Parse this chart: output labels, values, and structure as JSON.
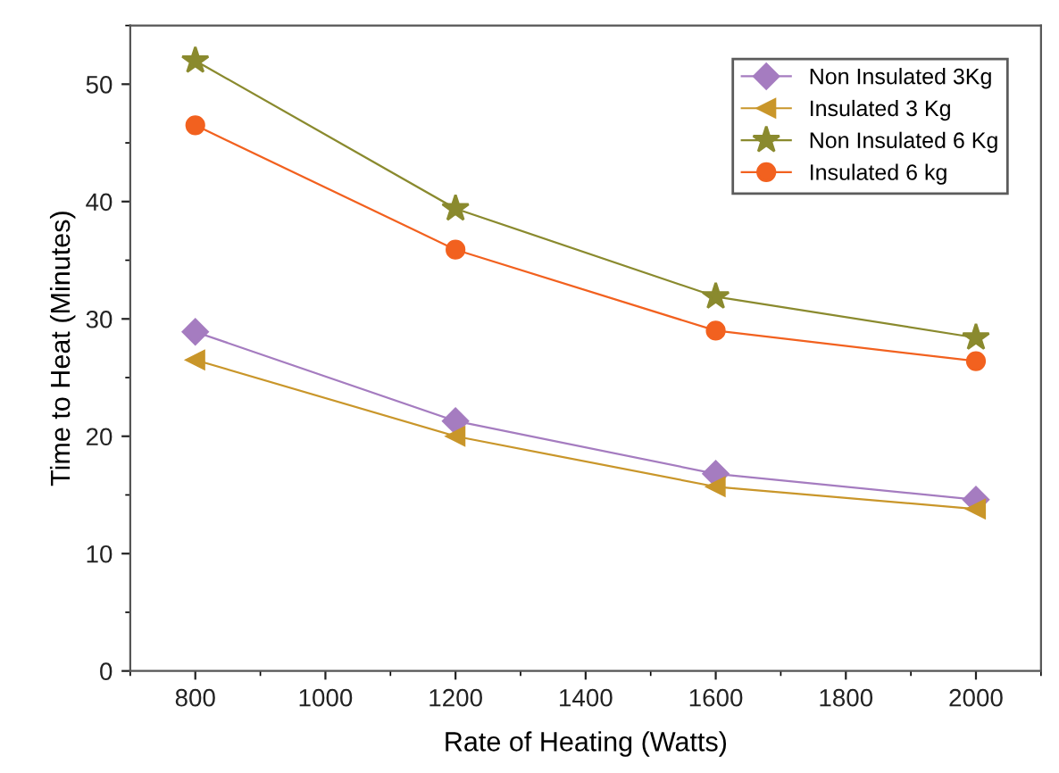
{
  "chart_data": {
    "type": "line",
    "xlabel": "Rate of Heating (Watts)",
    "ylabel": "Time to Heat (Minutes)",
    "x": [
      800,
      1200,
      1600,
      2000
    ],
    "series": [
      {
        "name": "Non Insulated 3Kg",
        "color": "#a57cc0",
        "marker": "diamond",
        "values": [
          28.9,
          21.3,
          16.8,
          14.6
        ]
      },
      {
        "name": "Insulated 3 Kg",
        "color": "#c9962a",
        "marker": "triangle",
        "values": [
          26.5,
          20.0,
          15.7,
          13.8
        ]
      },
      {
        "name": "Non Insulated 6 Kg",
        "color": "#8a8a2e",
        "marker": "star",
        "values": [
          52.0,
          39.4,
          31.9,
          28.4
        ]
      },
      {
        "name": "Insulated 6 kg",
        "color": "#f2611f",
        "marker": "circle",
        "values": [
          46.5,
          35.9,
          29.0,
          26.4
        ]
      }
    ],
    "xlim": [
      700,
      2100
    ],
    "xticks": [
      800,
      1000,
      1200,
      1400,
      1600,
      1800,
      2000
    ],
    "ylim": [
      0,
      55
    ],
    "yticks": [
      0,
      10,
      20,
      30,
      40,
      50
    ],
    "grid": false,
    "legend": "top right",
    "line_style": "solid"
  }
}
